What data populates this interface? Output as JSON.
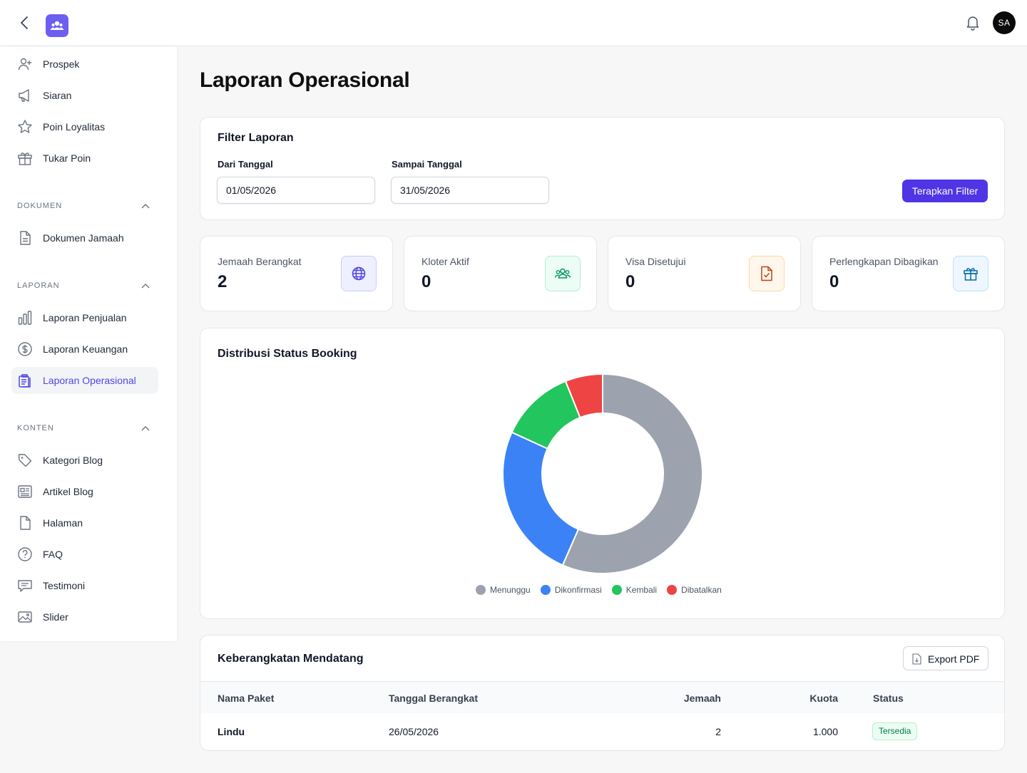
{
  "header": {
    "avatar_initials": "SA"
  },
  "sidebar": {
    "top_items": [
      {
        "label": "Prospek",
        "icon": "user-plus-icon"
      },
      {
        "label": "Siaran",
        "icon": "megaphone-icon"
      },
      {
        "label": "Poin Loyalitas",
        "icon": "star-icon"
      },
      {
        "label": "Tukar Poin",
        "icon": "gift-icon"
      }
    ],
    "sections": [
      {
        "title": "DOKUMEN",
        "items": [
          {
            "label": "Dokumen Jamaah",
            "icon": "document-icon"
          }
        ]
      },
      {
        "title": "LAPORAN",
        "items": [
          {
            "label": "Laporan Penjualan",
            "icon": "bar-chart-icon"
          },
          {
            "label": "Laporan Keuangan",
            "icon": "dollar-circle-icon"
          },
          {
            "label": "Laporan Operasional",
            "icon": "clipboard-icon",
            "active": true
          }
        ]
      },
      {
        "title": "KONTEN",
        "items": [
          {
            "label": "Kategori Blog",
            "icon": "tag-icon"
          },
          {
            "label": "Artikel Blog",
            "icon": "newspaper-icon"
          },
          {
            "label": "Halaman",
            "icon": "page-icon"
          },
          {
            "label": "FAQ",
            "icon": "question-circle-icon"
          },
          {
            "label": "Testimoni",
            "icon": "chat-icon"
          },
          {
            "label": "Slider",
            "icon": "image-icon"
          }
        ]
      }
    ]
  },
  "page": {
    "title": "Laporan Operasional"
  },
  "filter": {
    "title": "Filter Laporan",
    "from_label": "Dari Tanggal",
    "from_value": "01/05/2026",
    "to_label": "Sampai Tanggal",
    "to_value": "31/05/2026",
    "apply_label": "Terapkan Filter"
  },
  "stats": [
    {
      "label": "Jemaah Berangkat",
      "value": "2",
      "icon": "globe-icon",
      "color": "#4f46e5",
      "bg": "#eef0ff",
      "border": "#c7cdfb"
    },
    {
      "label": "Kloter Aktif",
      "value": "0",
      "icon": "users-icon",
      "color": "#059669",
      "bg": "#ecfdf5",
      "border": "#b7ecd6"
    },
    {
      "label": "Visa Disetujui",
      "value": "0",
      "icon": "document-check-icon",
      "color": "#c2410c",
      "bg": "#fff7ec",
      "border": "#fbd9a8"
    },
    {
      "label": "Perlengkapan Dibagikan",
      "value": "0",
      "icon": "gift-icon",
      "color": "#0369a1",
      "bg": "#eef7ff",
      "border": "#bfe0f7"
    }
  ],
  "chart_data": {
    "type": "pie",
    "title": "Distribusi Status Booking",
    "categories": [
      "Menunggu",
      "Dikonfirmasi",
      "Kembali",
      "Dibatalkan"
    ],
    "values": [
      56,
      25,
      12,
      6
    ],
    "colors": [
      "#9ca3af",
      "#3b82f6",
      "#22c55e",
      "#ef4444"
    ],
    "legend": "bottom"
  },
  "departures": {
    "title": "Keberangkatan Mendatang",
    "export_label": "Export PDF",
    "columns": [
      "Nama Paket",
      "Tanggal Berangkat",
      "Jemaah",
      "Kuota",
      "Status"
    ],
    "rows": [
      {
        "package": "Lindu",
        "date": "26/05/2026",
        "pilgrims": "2",
        "quota": "1.000",
        "status": "Tersedia"
      }
    ]
  }
}
